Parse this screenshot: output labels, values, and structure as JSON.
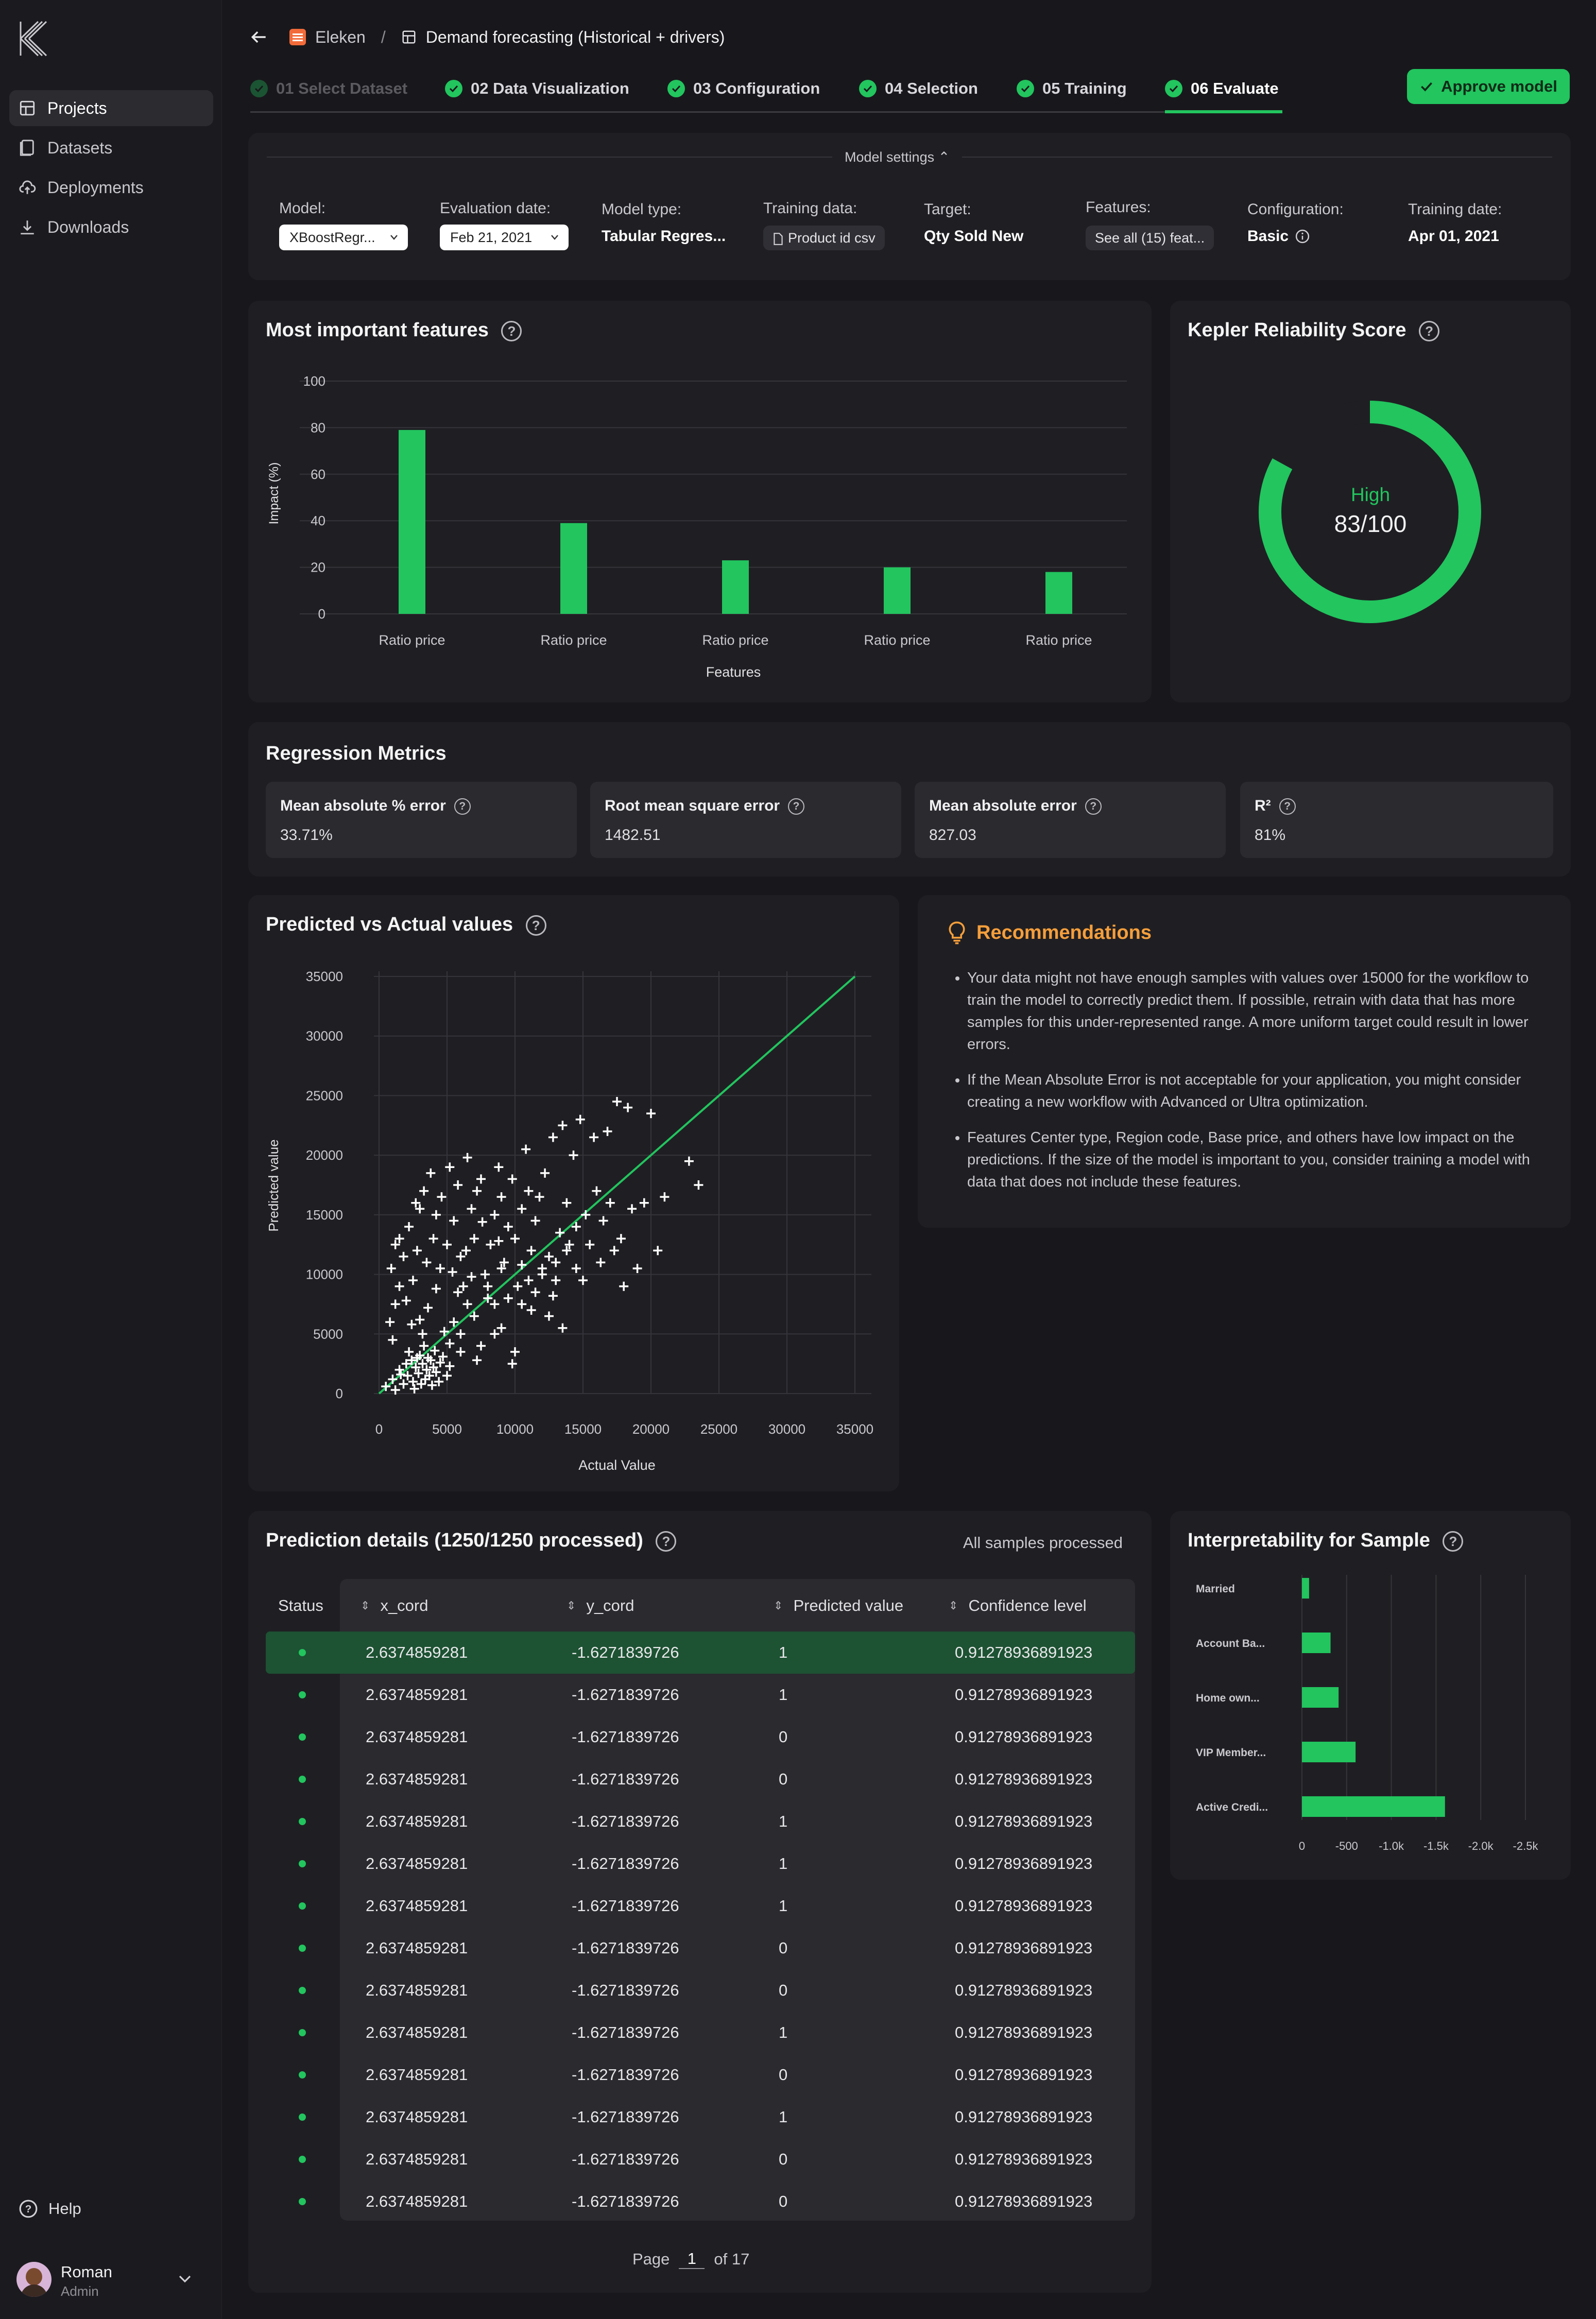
{
  "sidebar": {
    "nav": [
      {
        "label": "Projects",
        "icon": "grid-icon",
        "active": true
      },
      {
        "label": "Datasets",
        "icon": "file-icon"
      },
      {
        "label": "Deployments",
        "icon": "cloud-upload-icon"
      },
      {
        "label": "Downloads",
        "icon": "download-icon"
      }
    ],
    "help": "Help",
    "user": {
      "name": "Roman",
      "role": "Admin"
    }
  },
  "header": {
    "org": "Eleken",
    "separator": "/",
    "project": "Demand forecasting (Historical + drivers)"
  },
  "steps": [
    {
      "label": "01 Select Dataset",
      "dim": true
    },
    {
      "label": "02 Data Visualization"
    },
    {
      "label": "03 Configuration"
    },
    {
      "label": "04 Selection"
    },
    {
      "label": "05 Training"
    },
    {
      "label": "06 Evaluate",
      "active": true
    }
  ],
  "approve_button": "Approve model",
  "settings": {
    "toggle": "Model settings ⌃",
    "model_label": "Model:",
    "model_value": "XBoostRegr...",
    "eval_label": "Evaluation date:",
    "eval_value": "Feb 21, 2021",
    "type_label": "Model type:",
    "type_value": "Tabular Regres...",
    "training_label": "Training data:",
    "training_value": "Product id csv",
    "target_label": "Target:",
    "target_value": "Qty Sold New",
    "features_label": "Features:",
    "features_value": "See all (15) feat...",
    "config_label": "Configuration:",
    "config_value": "Basic",
    "date_label": "Training date:",
    "date_value": "Apr 01, 2021"
  },
  "features_card": {
    "title": "Most important features"
  },
  "reliability": {
    "title": "Kepler Reliability Score",
    "level": "High",
    "score_text": "83/100",
    "score": 83
  },
  "regression": {
    "title": "Regression Metrics",
    "metrics": [
      {
        "label": "Mean absolute % error",
        "value": "33.71%"
      },
      {
        "label": "Root mean square error",
        "value": "1482.51"
      },
      {
        "label": "Mean absolute error",
        "value": "827.03"
      },
      {
        "label": "R²",
        "value": "81%"
      }
    ]
  },
  "scatter_card": {
    "title": "Predicted vs Actual values"
  },
  "recommendations": {
    "title": "Recommendations",
    "items": [
      "Your data might not have enough samples with values over 15000 for the workflow to train the model to correctly predict them. If possible, retrain with data that has more samples for this under-represented range. A more uniform target could result in lower errors.",
      "If the Mean Absolute Error is not acceptable for your application, you might consider creating a new workflow with Advanced or Ultra optimization.",
      "Features Center type, Region code, Base price, and others have low impact on the predictions. If the size of the model is important to you, consider training a model with data that does not include these features."
    ]
  },
  "predictions": {
    "title": "Prediction details (1250/1250 processed)",
    "status_note": "All samples processed",
    "columns": [
      "Status",
      "x_cord",
      "y_cord",
      "Predicted value",
      "Confidence level"
    ],
    "rows": [
      [
        "2.6374859281",
        "-1.6271839726",
        "1",
        "0.91278936891923"
      ],
      [
        "2.6374859281",
        "-1.6271839726",
        "1",
        "0.91278936891923"
      ],
      [
        "2.6374859281",
        "-1.6271839726",
        "0",
        "0.91278936891923"
      ],
      [
        "2.6374859281",
        "-1.6271839726",
        "0",
        "0.91278936891923"
      ],
      [
        "2.6374859281",
        "-1.6271839726",
        "1",
        "0.91278936891923"
      ],
      [
        "2.6374859281",
        "-1.6271839726",
        "1",
        "0.91278936891923"
      ],
      [
        "2.6374859281",
        "-1.6271839726",
        "1",
        "0.91278936891923"
      ],
      [
        "2.6374859281",
        "-1.6271839726",
        "0",
        "0.91278936891923"
      ],
      [
        "2.6374859281",
        "-1.6271839726",
        "0",
        "0.91278936891923"
      ],
      [
        "2.6374859281",
        "-1.6271839726",
        "1",
        "0.91278936891923"
      ],
      [
        "2.6374859281",
        "-1.6271839726",
        "0",
        "0.91278936891923"
      ],
      [
        "2.6374859281",
        "-1.6271839726",
        "1",
        "0.91278936891923"
      ],
      [
        "2.6374859281",
        "-1.6271839726",
        "0",
        "0.91278936891923"
      ],
      [
        "2.6374859281",
        "-1.6271839726",
        "0",
        "0.91278936891923"
      ]
    ],
    "page_label": "Page",
    "page": "1",
    "page_of": "of 17"
  },
  "interpretability": {
    "title": "Interpretability for Sample"
  },
  "colors": {
    "accent": "#22c55e",
    "orange": "#f59e3b",
    "bg": "#18181c",
    "card": "#1f1f23"
  },
  "chart_data": [
    {
      "type": "bar",
      "title": "Most important features",
      "xlabel": "Features",
      "ylabel": "Impact (%)",
      "categories": [
        "Ratio price",
        "Ratio price",
        "Ratio price",
        "Ratio price",
        "Ratio price"
      ],
      "values": [
        79,
        39,
        23,
        20,
        18
      ],
      "ylim": [
        0,
        100
      ],
      "yticks": [
        0,
        20,
        40,
        60,
        80,
        100
      ],
      "grid": true
    },
    {
      "type": "scatter",
      "title": "Predicted vs Actual values",
      "xlabel": "Actual Value",
      "ylabel": "Predicted value",
      "xlim": [
        0,
        35000
      ],
      "ylim": [
        0,
        35000
      ],
      "xticks": [
        0,
        5000,
        10000,
        15000,
        20000,
        25000,
        30000,
        35000
      ],
      "yticks": [
        0,
        5000,
        10000,
        15000,
        20000,
        25000,
        30000,
        35000
      ],
      "reference_line": [
        [
          0,
          0
        ],
        [
          35000,
          35000
        ]
      ],
      "points": [
        [
          500,
          600
        ],
        [
          1000,
          1200
        ],
        [
          1200,
          300
        ],
        [
          1500,
          2000
        ],
        [
          1600,
          1600
        ],
        [
          1800,
          800
        ],
        [
          2000,
          2500
        ],
        [
          2100,
          1500
        ],
        [
          2200,
          3500
        ],
        [
          2400,
          2800
        ],
        [
          2500,
          1000
        ],
        [
          2600,
          400
        ],
        [
          2700,
          2200
        ],
        [
          2800,
          3000
        ],
        [
          2900,
          1700
        ],
        [
          3000,
          3200
        ],
        [
          3100,
          800
        ],
        [
          3200,
          2500
        ],
        [
          3300,
          4000
        ],
        [
          3400,
          1200
        ],
        [
          3500,
          2000
        ],
        [
          3600,
          3000
        ],
        [
          3700,
          1500
        ],
        [
          3800,
          2800
        ],
        [
          3900,
          700
        ],
        [
          4000,
          2200
        ],
        [
          4100,
          3600
        ],
        [
          4200,
          1800
        ],
        [
          4400,
          1000
        ],
        [
          4500,
          2600
        ],
        [
          4700,
          3100
        ],
        [
          5000,
          1500
        ],
        [
          5200,
          2300
        ],
        [
          1000,
          4500
        ],
        [
          800,
          6000
        ],
        [
          1200,
          7500
        ],
        [
          1500,
          9000
        ],
        [
          900,
          10500
        ],
        [
          1800,
          11500
        ],
        [
          1500,
          13000
        ],
        [
          2200,
          14000
        ],
        [
          1200,
          12500
        ],
        [
          2500,
          9500
        ],
        [
          2800,
          12000
        ],
        [
          3000,
          15500
        ],
        [
          3300,
          17000
        ],
        [
          2700,
          16000
        ],
        [
          3800,
          18500
        ],
        [
          3500,
          11000
        ],
        [
          4000,
          13000
        ],
        [
          4200,
          15000
        ],
        [
          4600,
          16500
        ],
        [
          4500,
          10500
        ],
        [
          5000,
          12500
        ],
        [
          5200,
          19000
        ],
        [
          5500,
          14500
        ],
        [
          5800,
          17500
        ],
        [
          6000,
          11500
        ],
        [
          6200,
          9000
        ],
        [
          6500,
          19800
        ],
        [
          6800,
          15500
        ],
        [
          7000,
          13000
        ],
        [
          7200,
          17000
        ],
        [
          7500,
          18000
        ],
        [
          7800,
          10000
        ],
        [
          8000,
          8000
        ],
        [
          8200,
          12500
        ],
        [
          8500,
          15000
        ],
        [
          8800,
          19000
        ],
        [
          9000,
          16500
        ],
        [
          9200,
          11000
        ],
        [
          9500,
          14000
        ],
        [
          9800,
          18000
        ],
        [
          10000,
          13000
        ],
        [
          10200,
          9000
        ],
        [
          10500,
          15500
        ],
        [
          10800,
          20500
        ],
        [
          11000,
          17000
        ],
        [
          11200,
          12000
        ],
        [
          11500,
          14500
        ],
        [
          11800,
          16500
        ],
        [
          12000,
          10500
        ],
        [
          12200,
          18500
        ],
        [
          12500,
          11500
        ],
        [
          12800,
          21500
        ],
        [
          13000,
          9500
        ],
        [
          13300,
          13500
        ],
        [
          13500,
          22500
        ],
        [
          13800,
          16000
        ],
        [
          14000,
          12500
        ],
        [
          14300,
          20000
        ],
        [
          14500,
          14000
        ],
        [
          14800,
          23000
        ],
        [
          15000,
          9500
        ],
        [
          15200,
          15000
        ],
        [
          15500,
          12500
        ],
        [
          15800,
          21500
        ],
        [
          16000,
          17000
        ],
        [
          16300,
          11000
        ],
        [
          16500,
          14500
        ],
        [
          16800,
          22000
        ],
        [
          17000,
          16000
        ],
        [
          17300,
          12000
        ],
        [
          17500,
          24500
        ],
        [
          17800,
          13000
        ],
        [
          18000,
          9000
        ],
        [
          18300,
          24000
        ],
        [
          18600,
          15500
        ],
        [
          19000,
          10500
        ],
        [
          19500,
          16000
        ],
        [
          20000,
          23500
        ],
        [
          20500,
          12000
        ],
        [
          21000,
          16500
        ],
        [
          22800,
          19500
        ],
        [
          23500,
          17500
        ],
        [
          5500,
          6000
        ],
        [
          6000,
          5000
        ],
        [
          6500,
          7500
        ],
        [
          7000,
          6500
        ],
        [
          7500,
          4000
        ],
        [
          8000,
          9000
        ],
        [
          8500,
          7500
        ],
        [
          9000,
          5500
        ],
        [
          9500,
          8000
        ],
        [
          10000,
          3500
        ],
        [
          10500,
          7500
        ],
        [
          11000,
          9500
        ],
        [
          11500,
          8500
        ],
        [
          12000,
          10000
        ],
        [
          12500,
          6500
        ],
        [
          13000,
          11000
        ],
        [
          13500,
          5500
        ],
        [
          6000,
          3500
        ],
        [
          7200,
          2800
        ],
        [
          8500,
          5000
        ],
        [
          9800,
          2500
        ],
        [
          4800,
          5200
        ],
        [
          5800,
          8500
        ],
        [
          6800,
          9800
        ],
        [
          3000,
          6200
        ],
        [
          3600,
          7200
        ],
        [
          4200,
          8800
        ],
        [
          2000,
          7800
        ],
        [
          5200,
          4200
        ],
        [
          9000,
          10500
        ],
        [
          10500,
          10800
        ],
        [
          11200,
          7000
        ],
        [
          12800,
          8200
        ],
        [
          13800,
          12000
        ],
        [
          14500,
          10500
        ],
        [
          2400,
          5800
        ],
        [
          3200,
          5000
        ],
        [
          8800,
          12800
        ],
        [
          7600,
          14400
        ],
        [
          6400,
          12000
        ],
        [
          5400,
          10200
        ]
      ]
    },
    {
      "type": "bar",
      "orientation": "horizontal",
      "title": "Interpretability for Sample",
      "categories": [
        "Married",
        "Account Ba...",
        "Home own...",
        "VIP Member...",
        "Active Credi..."
      ],
      "values": [
        -80,
        -320,
        -410,
        -600,
        -1600
      ],
      "xlim": [
        0,
        -2500
      ],
      "xticks": [
        "0",
        "-500",
        "-1.0k",
        "-1.5k",
        "-2.0k",
        "-2.5k"
      ],
      "grid": true
    }
  ]
}
